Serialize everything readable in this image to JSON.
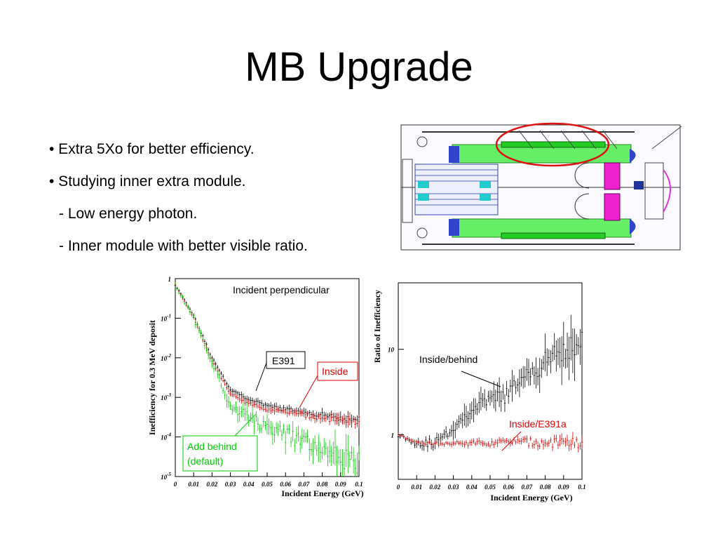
{
  "slide": {
    "title": "MB Upgrade",
    "bullets": [
      "• Extra 5Xo for better efficiency.",
      "• Studying inner extra module.",
      "- Low energy photon.",
      "- Inner module with better visible ratio."
    ]
  },
  "chart_data": [
    {
      "type": "scatter",
      "xlabel": "Incident Energy (GeV)",
      "ylabel": "Inefficiency for 0.3 MeV deposit",
      "xlim": [
        0,
        0.1
      ],
      "ylim": [
        1e-05,
        1
      ],
      "yscale": "log",
      "x_ticks": [
        "0",
        "0.01",
        "0.02",
        "0.03",
        "0.04",
        "0.05",
        "0.06",
        "0.07",
        "0.08",
        "0.09",
        "0.1"
      ],
      "y_ticks": [
        {
          "base": "1",
          "exp": ""
        },
        {
          "base": "10",
          "exp": "-1"
        },
        {
          "base": "10",
          "exp": "-2"
        },
        {
          "base": "10",
          "exp": "-3"
        },
        {
          "base": "10",
          "exp": "-4"
        },
        {
          "base": "10",
          "exp": "-5"
        }
      ],
      "annotations": [
        "Incident perpendicular",
        "E391",
        "Inside",
        "Add behind",
        "(default)"
      ],
      "x": [
        0,
        0.01,
        0.02,
        0.03,
        0.04,
        0.05,
        0.06,
        0.07,
        0.08,
        0.09,
        0.1
      ],
      "series": [
        {
          "color": "#000000",
          "values": [
            0.7,
            0.12,
            0.01,
            0.0016,
            0.0009,
            0.0006,
            0.0005,
            0.00042,
            0.00036,
            0.0003,
            0.00028
          ]
        },
        {
          "color": "#e00000",
          "values": [
            0.7,
            0.1,
            0.008,
            0.0012,
            0.0007,
            0.0005,
            0.00042,
            0.00036,
            0.0003,
            0.00026,
            0.00024
          ]
        },
        {
          "color": "#00cc00",
          "values": [
            0.7,
            0.1,
            0.007,
            0.0006,
            0.0003,
            0.00017,
            0.00011,
            7e-05,
            4e-05,
            2.8e-05,
            2e-05
          ]
        }
      ]
    },
    {
      "type": "scatter",
      "xlabel": "Incident Energy (GeV)",
      "ylabel": "Ratio of Inefficiency",
      "xlim": [
        0,
        0.1
      ],
      "ylim": [
        0.3,
        60
      ],
      "yscale": "log",
      "x_ticks": [
        "0",
        "0.01",
        "0.02",
        "0.03",
        "0.04",
        "0.05",
        "0.06",
        "0.07",
        "0.08",
        "0.09",
        "0.1"
      ],
      "y_ticks": [
        "10",
        "1"
      ],
      "annotations": [
        "Inside/behind",
        "Inside/E391a"
      ],
      "x": [
        0,
        0.01,
        0.02,
        0.03,
        0.04,
        0.05,
        0.06,
        0.07,
        0.08,
        0.09,
        0.1
      ],
      "series": [
        {
          "color": "#000000",
          "values": [
            1,
            0.8,
            0.8,
            1.2,
            2,
            2.5,
            3,
            5,
            7,
            10,
            12
          ]
        },
        {
          "color": "#e00000",
          "values": [
            1,
            0.8,
            0.78,
            0.78,
            0.8,
            0.8,
            0.82,
            0.82,
            0.8,
            0.8,
            0.8
          ]
        }
      ]
    }
  ]
}
